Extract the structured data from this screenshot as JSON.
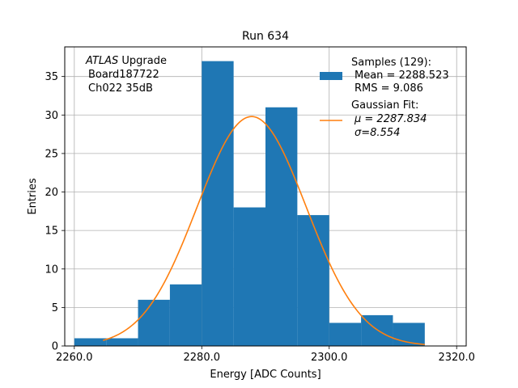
{
  "chart_data": {
    "type": "bar",
    "title": "Run 634",
    "xlabel": "Energy [ADC Counts]",
    "ylabel": "Entries",
    "xlim": [
      2258.5,
      2321.5
    ],
    "ylim": [
      0,
      38.85
    ],
    "grid": true,
    "legend_position": "top-right",
    "x_ticks": [
      2260.0,
      2280.0,
      2300.0,
      2320.0
    ],
    "x_tick_labels": [
      "2260.0",
      "2280.0",
      "2300.0",
      "2320.0"
    ],
    "y_ticks": [
      0,
      5,
      10,
      15,
      20,
      25,
      30,
      35
    ],
    "y_tick_labels": [
      "0",
      "5",
      "10",
      "15",
      "20",
      "25",
      "30",
      "35"
    ],
    "histogram": {
      "bin_edges": [
        2260,
        2265,
        2270,
        2275,
        2280,
        2285,
        2290,
        2295,
        2300,
        2305,
        2310,
        2315
      ],
      "counts": [
        1,
        1,
        6,
        8,
        37,
        18,
        31,
        17,
        3,
        4,
        3
      ],
      "color": "#1f77b4"
    },
    "fit": {
      "type": "gaussian",
      "mu": 2287.834,
      "sigma": 8.554,
      "amplitude": 29.8,
      "x_range": [
        2264.5,
        2315.0
      ],
      "color": "#ff7f0e"
    },
    "annotation": {
      "line1_italic": "ATLAS",
      "line1_rest": " Upgrade",
      "line2": "Board187722",
      "line3": "Ch022 35dB"
    },
    "legend": [
      {
        "kind": "patch",
        "color": "#1f77b4",
        "lines": [
          "Samples (129):",
          "Mean = 2288.523",
          "RMS = 9.086"
        ]
      },
      {
        "kind": "line",
        "color": "#ff7f0e",
        "lines": [
          "Gaussian Fit:",
          "μ = 2287.834",
          "σ=8.554"
        ]
      }
    ]
  }
}
